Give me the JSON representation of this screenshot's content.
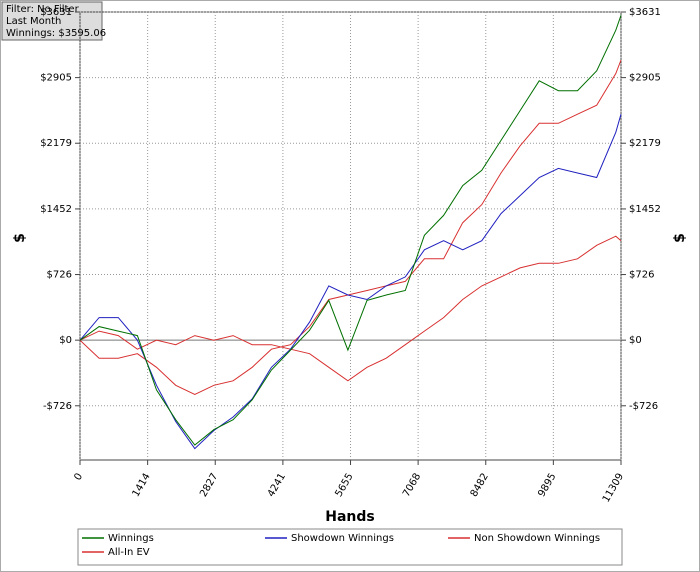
{
  "chart_data": {
    "type": "line",
    "filter_box": [
      "Filter: No Filter",
      "Last Month",
      "Winnings: $3595.06"
    ],
    "y_label": "$",
    "x_label": "Hands",
    "xlim": [
      0,
      11309
    ],
    "xticks": [
      0,
      1414,
      2827,
      4241,
      5655,
      7068,
      8482,
      9895,
      11309
    ],
    "ylim": [
      -1326,
      3631
    ],
    "yticks": [
      {
        "value": -726,
        "label": "-$726"
      },
      {
        "value": 0,
        "label": "$0"
      },
      {
        "value": 726,
        "label": "$726"
      },
      {
        "value": 1452,
        "label": "$1452"
      },
      {
        "value": 2179,
        "label": "$2179"
      },
      {
        "value": 2905,
        "label": "$2905"
      },
      {
        "value": 3631,
        "label": "$3631"
      }
    ],
    "grid": true,
    "x": [
      0,
      400,
      800,
      1200,
      1600,
      2000,
      2400,
      2800,
      3200,
      3600,
      4000,
      4400,
      4800,
      5200,
      5600,
      6000,
      6400,
      6800,
      7200,
      7600,
      8000,
      8400,
      8800,
      9200,
      9600,
      10000,
      10400,
      10800,
      11200,
      11309
    ],
    "series": [
      {
        "name": "Winnings",
        "color": "#007000",
        "values": [
          0,
          150,
          100,
          50,
          -550,
          -880,
          -1160,
          -990,
          -880,
          -660,
          -330,
          -110,
          110,
          440,
          -110,
          440,
          500,
          550,
          1160,
          1380,
          1710,
          1880,
          2210,
          2540,
          2870,
          2760,
          2760,
          2980,
          3430,
          3595
        ]
      },
      {
        "name": "Showdown Winnings",
        "color": "#2020c0",
        "values": [
          0,
          250,
          250,
          0,
          -500,
          -900,
          -1200,
          -1000,
          -850,
          -650,
          -300,
          -100,
          200,
          600,
          500,
          450,
          600,
          700,
          1000,
          1100,
          1000,
          1100,
          1400,
          1600,
          1800,
          1900,
          1850,
          1800,
          2300,
          2500
        ]
      },
      {
        "name": "Non Showdown Winnings",
        "color": "#d83030",
        "values": [
          0,
          -200,
          -200,
          -150,
          -300,
          -500,
          -600,
          -500,
          -450,
          -300,
          -100,
          -50,
          150,
          450,
          500,
          550,
          600,
          650,
          900,
          900,
          1300,
          1500,
          1850,
          2150,
          2400,
          2400,
          2500,
          2600,
          2950,
          3100
        ]
      },
      {
        "name": "All-In EV",
        "color": "#d83030",
        "values": [
          0,
          100,
          50,
          -100,
          0,
          -50,
          50,
          0,
          50,
          -50,
          -50,
          -100,
          -150,
          -300,
          -450,
          -300,
          -200,
          -50,
          100,
          250,
          450,
          600,
          700,
          800,
          850,
          850,
          900,
          1050,
          1150,
          1100
        ]
      }
    ]
  }
}
